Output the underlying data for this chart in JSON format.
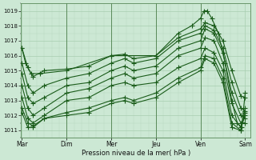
{
  "xlabel": "Pression niveau de la mer( hPa )",
  "ylim": [
    1010.5,
    1019.5
  ],
  "yticks": [
    1011,
    1012,
    1013,
    1014,
    1015,
    1016,
    1017,
    1018,
    1019
  ],
  "day_labels": [
    "Mar",
    "Dim",
    "Mer",
    "Jeu",
    "Ven",
    "Sam"
  ],
  "day_positions": [
    0,
    1,
    2,
    3,
    4,
    5
  ],
  "background_color": "#cce8d4",
  "grid_color_major": "#a8cdb0",
  "grid_color_minor": "#b8d8be",
  "line_color": "#1a5c1a",
  "marker_color": "#1a5c1a",
  "figsize": [
    3.2,
    2.0
  ],
  "dpi": 100,
  "lines": [
    {
      "x": [
        0.0,
        0.13,
        0.25,
        0.5,
        1.0,
        1.5,
        2.0,
        2.3,
        2.5,
        3.0,
        3.5,
        4.0,
        4.1,
        4.3,
        4.5,
        4.7,
        4.9,
        5.0
      ],
      "y": [
        1016.5,
        1015.2,
        1014.6,
        1015.0,
        1015.1,
        1015.3,
        1016.0,
        1016.1,
        1015.8,
        1016.0,
        1017.2,
        1017.8,
        1018.2,
        1018.0,
        1017.0,
        1015.0,
        1013.3,
        1013.2
      ]
    },
    {
      "x": [
        0.0,
        0.13,
        0.25,
        0.5,
        1.0,
        1.5,
        2.0,
        2.3,
        2.5,
        3.0,
        3.5,
        4.0,
        4.1,
        4.3,
        4.5,
        4.7,
        4.9,
        5.0
      ],
      "y": [
        1015.5,
        1014.0,
        1013.5,
        1014.0,
        1014.5,
        1014.8,
        1015.5,
        1015.8,
        1015.5,
        1015.8,
        1017.0,
        1017.5,
        1018.0,
        1017.7,
        1016.5,
        1014.2,
        1012.5,
        1012.3
      ]
    },
    {
      "x": [
        0.0,
        0.13,
        0.25,
        0.5,
        1.0,
        1.5,
        2.0,
        2.3,
        2.5,
        3.0,
        3.5,
        4.0,
        4.1,
        4.3,
        4.5,
        4.7,
        4.9,
        5.0
      ],
      "y": [
        1014.8,
        1013.2,
        1012.8,
        1013.2,
        1014.0,
        1014.2,
        1015.0,
        1015.3,
        1015.0,
        1015.3,
        1016.5,
        1017.0,
        1017.8,
        1017.5,
        1016.2,
        1013.5,
        1012.0,
        1011.8
      ]
    },
    {
      "x": [
        0.0,
        0.13,
        0.25,
        0.5,
        1.0,
        1.5,
        2.0,
        2.3,
        2.5,
        3.0,
        3.5,
        4.0,
        4.1,
        4.3,
        4.5,
        4.7,
        4.9,
        5.0
      ],
      "y": [
        1014.0,
        1012.5,
        1012.0,
        1012.5,
        1013.5,
        1013.8,
        1014.5,
        1014.8,
        1014.5,
        1014.8,
        1016.0,
        1016.5,
        1017.2,
        1017.0,
        1015.5,
        1012.8,
        1011.5,
        1011.5
      ]
    },
    {
      "x": [
        0.0,
        0.13,
        0.25,
        0.5,
        1.0,
        1.5,
        2.0,
        2.3,
        2.5,
        3.0,
        3.5,
        4.0,
        4.1,
        4.3,
        4.5,
        4.7,
        4.9,
        5.0
      ],
      "y": [
        1013.2,
        1011.8,
        1011.5,
        1012.0,
        1013.0,
        1013.2,
        1014.0,
        1014.2,
        1014.0,
        1014.2,
        1015.2,
        1015.8,
        1016.5,
        1016.2,
        1015.0,
        1012.0,
        1011.2,
        1012.0
      ]
    },
    {
      "x": [
        0.0,
        0.13,
        0.25,
        0.5,
        1.0,
        1.5,
        2.0,
        2.3,
        2.5,
        3.0,
        3.5,
        4.0,
        4.1,
        4.3,
        4.5,
        4.7,
        4.9,
        5.0
      ],
      "y": [
        1012.5,
        1011.5,
        1011.3,
        1011.8,
        1012.2,
        1012.5,
        1013.0,
        1013.2,
        1013.0,
        1013.5,
        1014.5,
        1015.2,
        1016.0,
        1015.8,
        1014.5,
        1011.5,
        1011.0,
        1012.2
      ]
    },
    {
      "x": [
        0.0,
        0.13,
        0.25,
        0.5,
        1.0,
        1.5,
        2.0,
        2.3,
        2.5,
        3.0,
        3.5,
        4.0,
        4.1,
        4.3,
        4.5,
        4.7,
        4.9,
        5.0
      ],
      "y": [
        1012.2,
        1011.2,
        1011.2,
        1011.8,
        1012.0,
        1012.2,
        1012.8,
        1013.0,
        1012.8,
        1013.2,
        1014.2,
        1015.0,
        1015.8,
        1015.5,
        1014.2,
        1011.2,
        1011.0,
        1012.5
      ]
    },
    {
      "x": [
        0.0,
        0.08,
        0.2,
        0.4,
        1.0,
        2.0,
        3.0,
        3.5,
        3.8,
        4.0,
        4.08,
        4.15,
        4.25,
        4.4,
        4.55,
        4.7,
        4.82,
        4.92,
        5.0
      ],
      "y": [
        1016.5,
        1015.5,
        1014.8,
        1014.8,
        1015.0,
        1016.0,
        1016.0,
        1017.5,
        1018.0,
        1018.5,
        1019.0,
        1019.0,
        1018.5,
        1017.5,
        1015.5,
        1013.0,
        1011.5,
        1011.2,
        1013.5
      ]
    }
  ],
  "vline_color": "#5a8a5a",
  "vline_positions": [
    1,
    2,
    3,
    4
  ],
  "marker_style": "+",
  "marker_size": 4,
  "linewidth": 0.8
}
